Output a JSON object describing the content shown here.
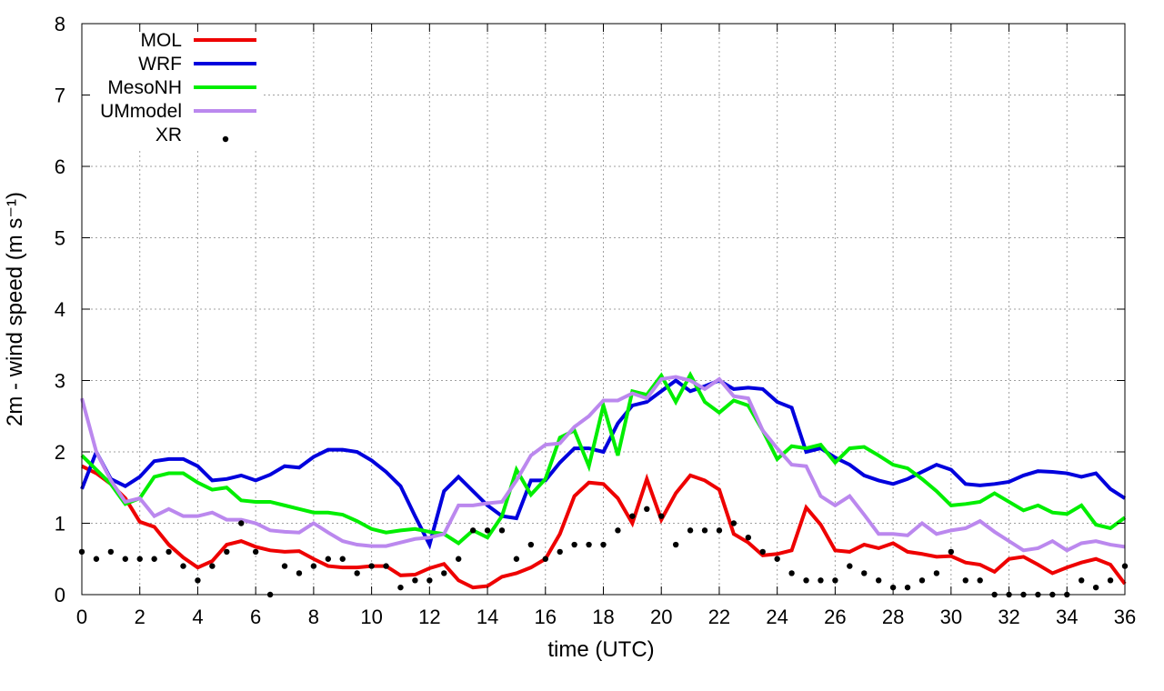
{
  "chart_data": {
    "type": "line",
    "xlabel": "time (UTC)",
    "ylabel": "2m - wind speed  (m s⁻¹)",
    "xlim": [
      0,
      36
    ],
    "xticks": [
      0,
      2,
      4,
      6,
      8,
      10,
      12,
      14,
      16,
      18,
      20,
      22,
      24,
      26,
      28,
      30,
      32,
      34,
      36
    ],
    "ylim": [
      0,
      8
    ],
    "yticks": [
      0,
      1,
      2,
      3,
      4,
      5,
      6,
      7,
      8
    ],
    "grid": true,
    "legend": "top-left",
    "x": [
      0,
      0.5,
      1,
      1.5,
      2,
      2.5,
      3,
      3.5,
      4,
      4.5,
      5,
      5.5,
      6,
      6.5,
      7,
      7.5,
      8,
      8.5,
      9,
      9.5,
      10,
      10.5,
      11,
      11.5,
      12,
      12.5,
      13,
      13.5,
      14,
      14.5,
      15,
      15.5,
      16,
      16.5,
      17,
      17.5,
      18,
      18.5,
      19,
      19.5,
      20,
      20.5,
      21,
      21.5,
      22,
      22.5,
      23,
      23.5,
      24,
      24.5,
      25,
      25.5,
      26,
      26.5,
      27,
      27.5,
      28,
      28.5,
      29,
      29.5,
      30,
      30.5,
      31,
      31.5,
      32,
      32.5,
      33,
      33.5,
      34,
      34.5,
      35,
      35.5,
      36
    ],
    "series": [
      {
        "name": "MOL",
        "color": "#ee0000",
        "mode": "lines",
        "values": [
          1.8,
          1.7,
          1.55,
          1.35,
          1.02,
          0.95,
          0.7,
          0.52,
          0.38,
          0.47,
          0.7,
          0.75,
          0.67,
          0.62,
          0.6,
          0.61,
          0.5,
          0.4,
          0.38,
          0.38,
          0.4,
          0.4,
          0.27,
          0.28,
          0.37,
          0.43,
          0.2,
          0.1,
          0.12,
          0.25,
          0.3,
          0.38,
          0.5,
          0.85,
          1.38,
          1.57,
          1.55,
          1.35,
          1.0,
          1.62,
          1.05,
          1.42,
          1.67,
          1.6,
          1.47,
          0.85,
          0.73,
          0.55,
          0.57,
          0.62,
          1.22,
          0.98,
          0.62,
          0.6,
          0.7,
          0.65,
          0.72,
          0.6,
          0.57,
          0.53,
          0.54,
          0.45,
          0.42,
          0.32,
          0.5,
          0.53,
          0.42,
          0.3,
          0.38,
          0.45,
          0.5,
          0.42,
          0.15
        ]
      },
      {
        "name": "WRF",
        "color": "#0000dd",
        "mode": "lines",
        "values": [
          1.48,
          2.0,
          1.62,
          1.52,
          1.65,
          1.87,
          1.9,
          1.9,
          1.8,
          1.6,
          1.62,
          1.67,
          1.6,
          1.68,
          1.8,
          1.78,
          1.93,
          2.03,
          2.03,
          2.0,
          1.88,
          1.72,
          1.52,
          1.1,
          0.7,
          1.45,
          1.65,
          1.45,
          1.25,
          1.1,
          1.07,
          1.6,
          1.6,
          1.85,
          2.05,
          2.05,
          2.0,
          2.4,
          2.65,
          2.7,
          2.85,
          3.0,
          2.85,
          2.92,
          3.0,
          2.88,
          2.9,
          2.88,
          2.7,
          2.62,
          2.0,
          2.05,
          1.92,
          1.82,
          1.67,
          1.6,
          1.55,
          1.62,
          1.72,
          1.82,
          1.75,
          1.55,
          1.53,
          1.55,
          1.58,
          1.67,
          1.73,
          1.72,
          1.7,
          1.65,
          1.7,
          1.48,
          1.35
        ]
      },
      {
        "name": "MesoNH",
        "color": "#00ee00",
        "mode": "lines",
        "values": [
          1.95,
          1.75,
          1.55,
          1.27,
          1.35,
          1.65,
          1.7,
          1.7,
          1.57,
          1.47,
          1.5,
          1.32,
          1.3,
          1.3,
          1.25,
          1.2,
          1.15,
          1.15,
          1.12,
          1.03,
          0.92,
          0.87,
          0.9,
          0.92,
          0.88,
          0.85,
          0.72,
          0.9,
          0.8,
          1.1,
          1.75,
          1.4,
          1.62,
          2.2,
          2.3,
          1.8,
          2.65,
          1.95,
          2.85,
          2.8,
          3.07,
          2.7,
          3.08,
          2.7,
          2.55,
          2.72,
          2.65,
          2.3,
          1.9,
          2.08,
          2.05,
          2.1,
          1.85,
          2.05,
          2.07,
          1.95,
          1.82,
          1.77,
          1.62,
          1.45,
          1.25,
          1.27,
          1.3,
          1.42,
          1.3,
          1.18,
          1.25,
          1.15,
          1.13,
          1.25,
          0.98,
          0.93,
          1.08
        ]
      },
      {
        "name": "UMmodel",
        "color": "#bb88ee",
        "mode": "lines",
        "values": [
          2.75,
          2.0,
          1.6,
          1.3,
          1.35,
          1.1,
          1.2,
          1.1,
          1.1,
          1.15,
          1.05,
          1.05,
          1.0,
          0.9,
          0.88,
          0.87,
          1.0,
          0.87,
          0.75,
          0.7,
          0.68,
          0.68,
          0.73,
          0.78,
          0.8,
          0.85,
          1.25,
          1.25,
          1.28,
          1.3,
          1.6,
          1.95,
          2.1,
          2.12,
          2.35,
          2.5,
          2.72,
          2.72,
          2.82,
          2.75,
          3.02,
          3.05,
          3.0,
          2.88,
          3.02,
          2.78,
          2.75,
          2.3,
          2.05,
          1.82,
          1.8,
          1.38,
          1.25,
          1.38,
          1.12,
          0.85,
          0.85,
          0.83,
          1.0,
          0.85,
          0.9,
          0.93,
          1.03,
          0.88,
          0.75,
          0.62,
          0.65,
          0.75,
          0.62,
          0.72,
          0.75,
          0.7,
          0.67
        ]
      },
      {
        "name": "XR",
        "color": "#000000",
        "mode": "points",
        "values": [
          0.6,
          0.5,
          0.6,
          0.5,
          0.5,
          0.5,
          0.6,
          0.4,
          0.2,
          0.4,
          0.6,
          1.0,
          0.6,
          0,
          0.4,
          0.3,
          0.4,
          0.5,
          0.5,
          0.3,
          0.4,
          0.4,
          0.1,
          0.2,
          0.2,
          0.3,
          0.5,
          0.9,
          0.9,
          0.9,
          0.5,
          0.7,
          0.5,
          0.6,
          0.7,
          0.7,
          0.7,
          0.9,
          1.1,
          1.2,
          1.1,
          0.7,
          0.9,
          0.9,
          0.9,
          1.0,
          0.8,
          0.6,
          0.5,
          0.3,
          0.2,
          0.2,
          0.2,
          0.4,
          0.3,
          0.2,
          0.1,
          0.1,
          0.2,
          0.3,
          0.6,
          0.2,
          0.2,
          0,
          0,
          0,
          0,
          0,
          0,
          0.2,
          0.1,
          0.2,
          0.4
        ]
      }
    ]
  }
}
